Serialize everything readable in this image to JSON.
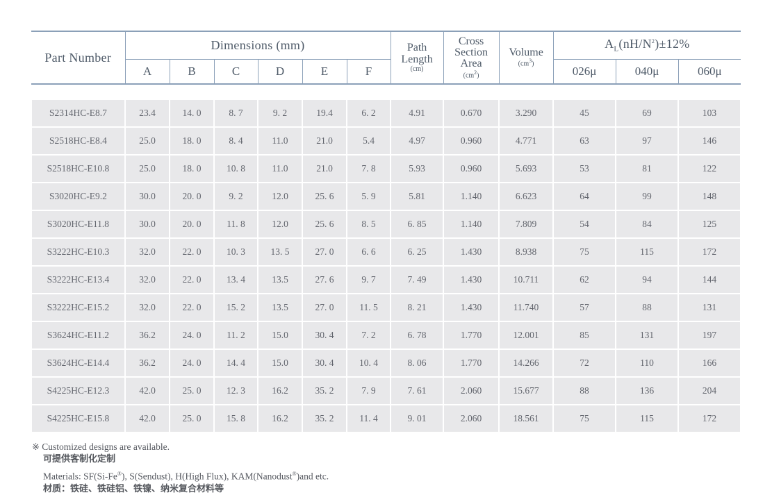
{
  "colors": {
    "border": "#8ba0b8",
    "header_text": "#4e5a68",
    "cell_background": "#e8e8ea",
    "cell_text": "#63666e",
    "note_text": "#55585f"
  },
  "table": {
    "headers": {
      "part_number": "Part Number",
      "dimensions": "Dimensions (mm)",
      "dim_cols": [
        "A",
        "B",
        "C",
        "D",
        "E",
        "F"
      ],
      "path_length": {
        "l1": "Path",
        "l2": "Length",
        "unit": "(cm)"
      },
      "cross_section": {
        "l1": "Cross",
        "l2": "Section",
        "l3": "Area",
        "unit_pre": "(cm",
        "unit_sup": "2",
        "unit_post": ")"
      },
      "volume": {
        "l1": "Volume",
        "unit_pre": "(cm",
        "unit_sup": "3",
        "unit_post": ")"
      },
      "al": {
        "pre": "A",
        "sub": "L",
        "mid": "(nH/N",
        "sup": "2",
        "post": ")±12%"
      },
      "al_cols": [
        "026μ",
        "040μ",
        "060μ"
      ]
    },
    "rows": [
      [
        "S2314HC-E8.7",
        "23.4",
        "14. 0",
        "8. 7",
        "9. 2",
        "19.4",
        "6. 2",
        "4.91",
        "0.670",
        "3.290",
        "45",
        "69",
        "103"
      ],
      [
        "S2518HC-E8.4",
        "25.0",
        "18. 0",
        "8. 4",
        "11.0",
        "21.0",
        "5.4",
        "4.97",
        "0.960",
        "4.771",
        "63",
        "97",
        "146"
      ],
      [
        "S2518HC-E10.8",
        "25.0",
        "18. 0",
        "10. 8",
        "11.0",
        "21.0",
        "7. 8",
        "5.93",
        "0.960",
        "5.693",
        "53",
        "81",
        "122"
      ],
      [
        "S3020HC-E9.2",
        "30.0",
        "20. 0",
        "9. 2",
        "12.0",
        "25. 6",
        "5. 9",
        "5.81",
        "1.140",
        "6.623",
        "64",
        "99",
        "148"
      ],
      [
        "S3020HC-E11.8",
        "30.0",
        "20. 0",
        "11. 8",
        "12.0",
        "25. 6",
        "8. 5",
        "6. 85",
        "1.140",
        "7.809",
        "54",
        "84",
        "125"
      ],
      [
        "S3222HC-E10.3",
        "32.0",
        "22. 0",
        "10. 3",
        "13. 5",
        "27. 0",
        "6. 6",
        "6. 25",
        "1.430",
        "8.938",
        "75",
        "115",
        "172"
      ],
      [
        "S3222HC-E13.4",
        "32.0",
        "22. 0",
        "13. 4",
        "13.5",
        "27. 6",
        "9. 7",
        "7. 49",
        "1.430",
        "10.711",
        "62",
        "94",
        "144"
      ],
      [
        "S3222HC-E15.2",
        "32.0",
        "22. 0",
        "15. 2",
        "13.5",
        "27. 0",
        "11. 5",
        "8. 21",
        "1.430",
        "11.740",
        "57",
        "88",
        "131"
      ],
      [
        "S3624HC-E11.2",
        "36.2",
        "24. 0",
        "11. 2",
        "15.0",
        "30. 4",
        "7. 2",
        "6. 78",
        "1.770",
        "12.001",
        "85",
        "131",
        "197"
      ],
      [
        "S3624HC-E14.4",
        "36.2",
        "24. 0",
        "14. 4",
        "15.0",
        "30. 4",
        "10. 4",
        "8. 06",
        "1.770",
        "14.266",
        "72",
        "110",
        "166"
      ],
      [
        "S4225HC-E12.3",
        "42.0",
        "25. 0",
        "12. 3",
        "16.2",
        "35. 2",
        "7. 9",
        "7. 61",
        "2.060",
        "15.677",
        "88",
        "136",
        "204"
      ],
      [
        "S4225HC-E15.8",
        "42.0",
        "25. 0",
        "15. 8",
        "16.2",
        "35. 2",
        "11. 4",
        "9. 01",
        "2.060",
        "18.561",
        "75",
        "115",
        "172"
      ]
    ]
  },
  "notes": {
    "marker": "※",
    "customized_en": "Customized designs are available.",
    "customized_zh": "可提供客制化定制",
    "materials": {
      "p1": "Materials: SF(Si-Fe",
      "sup1": "®",
      "p2": "), S(Sendust), H(High Flux), KAM(Nanodust",
      "sup2": "®",
      "p3": ")and etc."
    },
    "materials_zh": "材质：铁硅、铁硅铝、铁镍、纳米复合材料等"
  }
}
